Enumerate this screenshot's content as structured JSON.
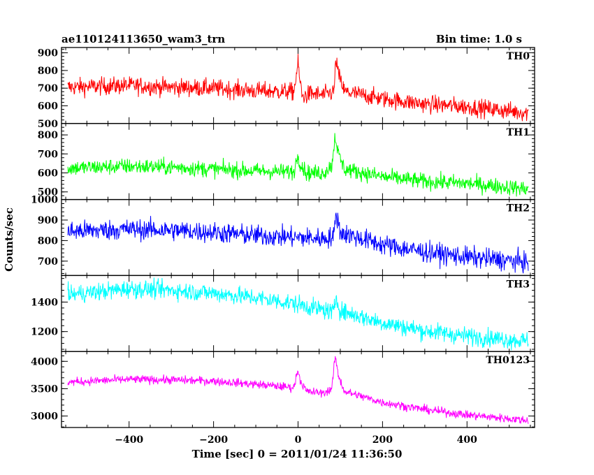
{
  "header": {
    "obs_id": "ae110124113650_wam3_trn",
    "bin_time": "Bin time: 1.0 s"
  },
  "chart_data": {
    "type": "line",
    "xlabel": "Time [sec] 0 = 2011/01/24 11:36:50",
    "ylabel": "Counts/sec",
    "xlim": [
      -560,
      560
    ],
    "x_ticks": [
      -400,
      -200,
      0,
      200,
      400
    ],
    "x_tick_labels": [
      "−400",
      "−200",
      "0",
      "200",
      "400"
    ],
    "bin_size_sec": 1.0,
    "series": [
      {
        "name": "TH0",
        "color": "#ff0000",
        "ylim": [
          500,
          930
        ],
        "y_ticks": [
          500,
          600,
          700,
          800,
          900
        ],
        "y_tick_labels": [
          "500",
          "600",
          "700",
          "800",
          "900"
        ],
        "time_sec": [
          -545,
          -400,
          -300,
          -200,
          -100,
          -10,
          0,
          3,
          10,
          30,
          60,
          85,
          90,
          95,
          110,
          200,
          300,
          400,
          545
        ],
        "counts_per_sec": [
          705,
          715,
          705,
          700,
          685,
          680,
          840,
          770,
          650,
          670,
          660,
          680,
          870,
          780,
          680,
          640,
          610,
          595,
          560
        ],
        "noise_amplitude": 45
      },
      {
        "name": "TH1",
        "color": "#00ff00",
        "ylim": [
          460,
          860
        ],
        "y_ticks": [
          500,
          600,
          700,
          800
        ],
        "y_tick_labels": [
          "500",
          "600",
          "700",
          "800"
        ],
        "time_sec": [
          -545,
          -400,
          -300,
          -200,
          -100,
          -10,
          0,
          5,
          20,
          60,
          80,
          88,
          95,
          110,
          200,
          300,
          400,
          545
        ],
        "counts_per_sec": [
          625,
          635,
          630,
          620,
          610,
          605,
          700,
          650,
          600,
          600,
          640,
          800,
          700,
          620,
          580,
          555,
          545,
          515
        ],
        "noise_amplitude": 38
      },
      {
        "name": "TH2",
        "color": "#0000ff",
        "ylim": [
          630,
          1000
        ],
        "y_ticks": [
          700,
          800,
          900,
          1000
        ],
        "y_tick_labels": [
          "700",
          "800",
          "900",
          "1000"
        ],
        "time_sec": [
          -545,
          -400,
          -300,
          -200,
          -100,
          0,
          60,
          85,
          90,
          100,
          200,
          300,
          400,
          545
        ],
        "counts_per_sec": [
          845,
          855,
          850,
          840,
          825,
          815,
          810,
          820,
          940,
          840,
          780,
          745,
          720,
          695
        ],
        "noise_amplitude": 45
      },
      {
        "name": "TH3",
        "color": "#00ffff",
        "ylim": [
          1065,
          1580
        ],
        "y_ticks": [
          1200,
          1400
        ],
        "y_tick_labels": [
          "1200",
          "1400"
        ],
        "time_sec": [
          -545,
          -400,
          -300,
          -200,
          -100,
          0,
          85,
          90,
          100,
          200,
          300,
          400,
          545
        ],
        "counts_per_sec": [
          1450,
          1490,
          1480,
          1460,
          1430,
          1385,
          1330,
          1440,
          1340,
          1260,
          1205,
          1170,
          1135
        ],
        "noise_amplitude": 55
      },
      {
        "name": "TH0123",
        "color": "#ff00ff",
        "ylim": [
          2790,
          4180
        ],
        "y_ticks": [
          3000,
          3500,
          4000
        ],
        "y_tick_labels": [
          "3000",
          "3500",
          "4000"
        ],
        "time_sec": [
          -545,
          -400,
          -300,
          -200,
          -100,
          -10,
          0,
          5,
          20,
          60,
          80,
          88,
          95,
          110,
          200,
          300,
          400,
          545
        ],
        "counts_per_sec": [
          3620,
          3670,
          3660,
          3640,
          3580,
          3520,
          3860,
          3650,
          3450,
          3420,
          3500,
          4100,
          3750,
          3450,
          3250,
          3120,
          3020,
          2920
        ],
        "noise_amplitude": 70
      }
    ]
  }
}
